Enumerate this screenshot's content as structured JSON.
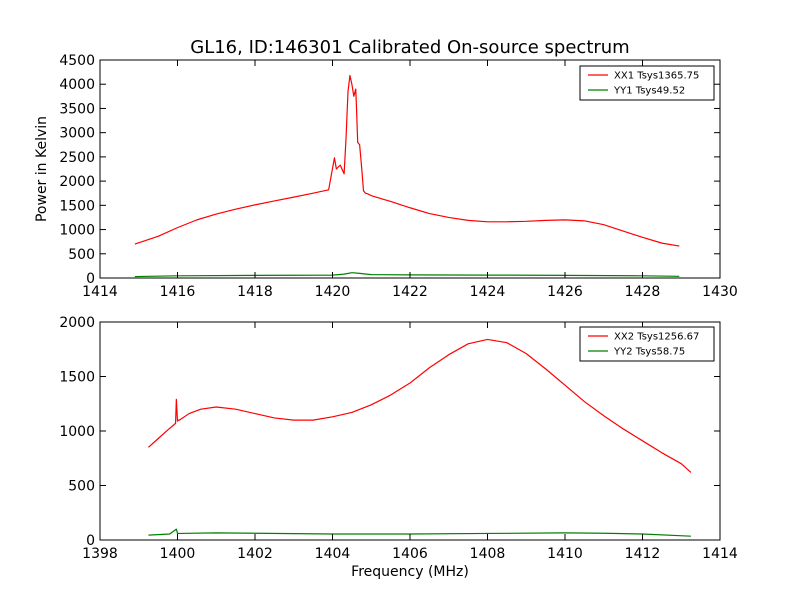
{
  "figure_title": "GL16, ID:146301 Calibrated On-source spectrum",
  "chart_data": [
    {
      "type": "line",
      "xlabel": "",
      "ylabel": "Power in Kelvin",
      "xlim": [
        1414,
        1430
      ],
      "ylim": [
        0,
        4500
      ],
      "xticks": [
        1414,
        1416,
        1418,
        1420,
        1422,
        1424,
        1426,
        1428,
        1430
      ],
      "yticks": [
        0,
        500,
        1000,
        1500,
        2000,
        2500,
        3000,
        3500,
        4000,
        4500
      ],
      "legend_position": "top-right",
      "series": [
        {
          "name": "XX1 Tsys1365.75",
          "color": "#ff0000",
          "x": [
            1414.9,
            1415.5,
            1416,
            1416.5,
            1417,
            1417.5,
            1418,
            1418.5,
            1419,
            1419.5,
            1419.9,
            1420.05,
            1420.1,
            1420.2,
            1420.3,
            1420.35,
            1420.4,
            1420.45,
            1420.5,
            1420.55,
            1420.6,
            1420.62,
            1420.65,
            1420.7,
            1420.75,
            1420.8,
            1420.85,
            1420.9,
            1421,
            1421.5,
            1422,
            1422.5,
            1423,
            1423.5,
            1424,
            1424.5,
            1425,
            1425.5,
            1426,
            1426.5,
            1427,
            1427.5,
            1428,
            1428.5,
            1428.95
          ],
          "y": [
            700,
            860,
            1040,
            1200,
            1320,
            1420,
            1510,
            1590,
            1670,
            1750,
            1820,
            2480,
            2250,
            2330,
            2150,
            2900,
            3850,
            4180,
            4000,
            3750,
            3900,
            3500,
            2800,
            2750,
            2300,
            1800,
            1750,
            1740,
            1700,
            1580,
            1450,
            1330,
            1250,
            1190,
            1160,
            1160,
            1170,
            1190,
            1200,
            1180,
            1100,
            970,
            840,
            720,
            660
          ]
        },
        {
          "name": "YY1 Tsys49.52",
          "color": "#008000",
          "x": [
            1414.9,
            1416,
            1418,
            1420,
            1420.3,
            1420.5,
            1420.7,
            1421,
            1422,
            1424,
            1426,
            1428,
            1428.95
          ],
          "y": [
            30,
            45,
            55,
            60,
            80,
            110,
            95,
            70,
            65,
            60,
            55,
            45,
            35
          ]
        }
      ]
    },
    {
      "type": "line",
      "xlabel": "Frequency (MHz)",
      "ylabel": "",
      "xlim": [
        1398,
        1414
      ],
      "ylim": [
        0,
        2000
      ],
      "xticks": [
        1398,
        1400,
        1402,
        1404,
        1406,
        1408,
        1410,
        1412,
        1414
      ],
      "yticks": [
        0,
        500,
        1000,
        1500,
        2000
      ],
      "legend_position": "top-right",
      "series": [
        {
          "name": "XX2 Tsys1256.67",
          "color": "#ff0000",
          "x": [
            1399.25,
            1399.5,
            1399.75,
            1399.95,
            1399.97,
            1400,
            1400.02,
            1400.05,
            1400.3,
            1400.6,
            1401,
            1401.5,
            1402,
            1402.5,
            1403,
            1403.5,
            1404,
            1404.5,
            1405,
            1405.5,
            1406,
            1406.5,
            1407,
            1407.5,
            1408,
            1408.5,
            1409,
            1409.5,
            1410,
            1410.5,
            1411,
            1411.5,
            1412,
            1412.5,
            1413,
            1413.25
          ],
          "y": [
            850,
            930,
            1010,
            1070,
            1290,
            1090,
            1100,
            1100,
            1160,
            1200,
            1220,
            1200,
            1160,
            1120,
            1100,
            1100,
            1130,
            1170,
            1240,
            1330,
            1440,
            1580,
            1700,
            1800,
            1840,
            1810,
            1710,
            1570,
            1420,
            1270,
            1140,
            1020,
            910,
            800,
            700,
            620
          ]
        },
        {
          "name": "YY2 Tsys58.75",
          "color": "#008000",
          "x": [
            1399.25,
            1399.8,
            1399.97,
            1400,
            1400.05,
            1401,
            1402,
            1404,
            1406,
            1408,
            1410,
            1411,
            1412,
            1413.25
          ],
          "y": [
            45,
            55,
            100,
            60,
            60,
            65,
            62,
            55,
            55,
            60,
            65,
            62,
            55,
            35
          ]
        }
      ]
    }
  ]
}
